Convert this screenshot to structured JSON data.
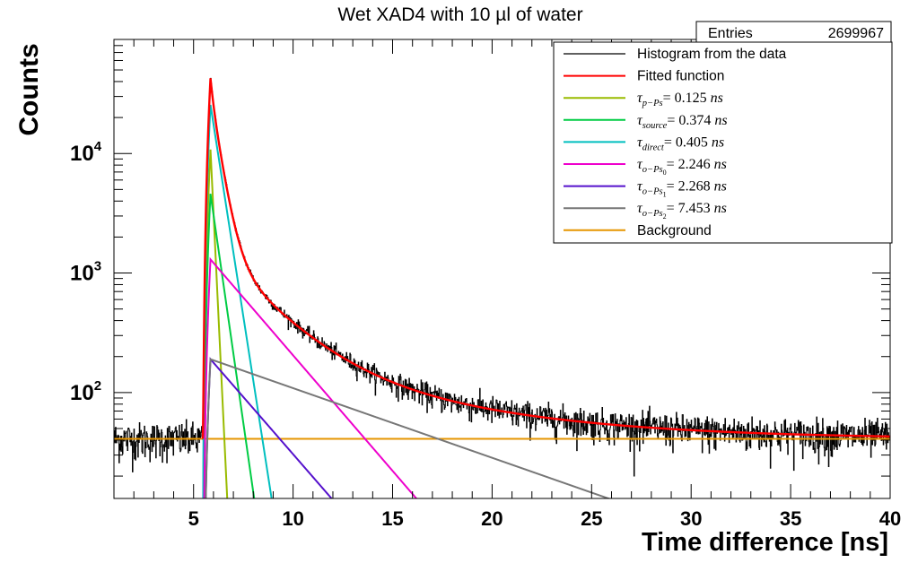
{
  "chart_data": {
    "type": "line",
    "title": "Wet XAD4 with 10 µl of water",
    "xlabel": "Time difference [ns]",
    "ylabel": "Counts",
    "xlim": [
      1,
      40
    ],
    "ylim": [
      13,
      90000
    ],
    "yscale": "log",
    "grid": false,
    "legend_placement": "top-right",
    "x_ticks": [
      5,
      10,
      15,
      20,
      25,
      30,
      35,
      40
    ],
    "x_tick_labels": [
      "5",
      "10",
      "15",
      "20",
      "25",
      "30",
      "35",
      "40"
    ],
    "y_ticks": [
      10000,
      1000,
      100
    ],
    "y_tick_labels": [
      {
        "base": "10",
        "exp": "4"
      },
      {
        "base": "10",
        "exp": "3"
      },
      {
        "base": "10",
        "exp": "2"
      }
    ],
    "stats": {
      "label": "Entries",
      "value": "2699967"
    },
    "background_level": 41,
    "peak_time": 5.85,
    "rise_start": 5.45,
    "series": [
      {
        "name": "Histogram from the data",
        "color": "#000000",
        "kind": "histogram"
      },
      {
        "name": "Fitted function",
        "color": "#ff0000",
        "kind": "total"
      },
      {
        "label": {
          "sym": "τ",
          "sub": "p−Ps",
          "subsub": "",
          "value": "= 0.125",
          "unit": "ns"
        },
        "color": "#99bb00",
        "kind": "component",
        "amplitude": 10800,
        "tau": 0.125
      },
      {
        "label": {
          "sym": "τ",
          "sub": "source",
          "subsub": "",
          "value": "= 0.374",
          "unit": "ns"
        },
        "color": "#00cc44",
        "kind": "component",
        "amplitude": 4600,
        "tau": 0.374
      },
      {
        "label": {
          "sym": "τ",
          "sub": "direct",
          "subsub": "",
          "value": "= 0.405",
          "unit": "ns"
        },
        "color": "#00bfbf",
        "kind": "component",
        "amplitude": 25500,
        "tau": 0.405
      },
      {
        "label": {
          "sym": "τ",
          "sub": "o−Ps",
          "subsub": "0",
          "value": "= 2.246",
          "unit": "ns"
        },
        "color": "#ee00cc",
        "kind": "component",
        "amplitude": 1300,
        "tau": 2.246
      },
      {
        "label": {
          "sym": "τ",
          "sub": "o−Ps",
          "subsub": "1",
          "value": "= 2.268",
          "unit": "ns"
        },
        "color": "#5511cc",
        "kind": "component",
        "amplitude": 190,
        "tau": 2.268
      },
      {
        "label": {
          "sym": "τ",
          "sub": "o−Ps",
          "subsub": "2",
          "value": "= 7.453",
          "unit": "ns"
        },
        "color": "#777777",
        "kind": "component",
        "amplitude": 190,
        "tau": 7.453
      },
      {
        "name": "Background",
        "color": "#e69500",
        "kind": "background"
      }
    ]
  }
}
